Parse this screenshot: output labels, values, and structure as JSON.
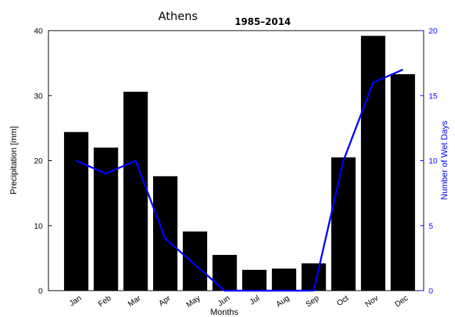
{
  "chart_data": {
    "type": "bar",
    "title": "1985–2014",
    "subtitle": "Athens",
    "xlabel": "Months",
    "ylabel": "Precipitation [mm]",
    "y2label": "Number of Wet Days",
    "categories": [
      "Jan",
      "Feb",
      "Mar",
      "Apr",
      "May",
      "Jun",
      "Jul",
      "Aug",
      "Sep",
      "Oct",
      "Nov",
      "Dec"
    ],
    "ylim": [
      0,
      40
    ],
    "yticks": [
      "0",
      "10",
      "20",
      "30",
      "40"
    ],
    "y2lim": [
      0,
      20
    ],
    "y2ticks": [
      "0",
      "5",
      "10",
      "15",
      "20"
    ],
    "series": [
      {
        "name": "Precipitation [mm]",
        "kind": "bar",
        "axis": "left",
        "color": "#000000",
        "values": [
          24.4,
          22.0,
          30.6,
          17.6,
          9.1,
          5.5,
          3.2,
          3.4,
          4.2,
          20.5,
          39.2,
          33.3
        ]
      },
      {
        "name": "Number of Wet Days",
        "kind": "line",
        "axis": "right",
        "color": "#0000ff",
        "values": [
          10,
          9,
          10,
          4,
          2,
          0,
          0,
          0,
          0,
          10,
          16,
          17
        ]
      }
    ],
    "grid": false,
    "legend": "none"
  }
}
